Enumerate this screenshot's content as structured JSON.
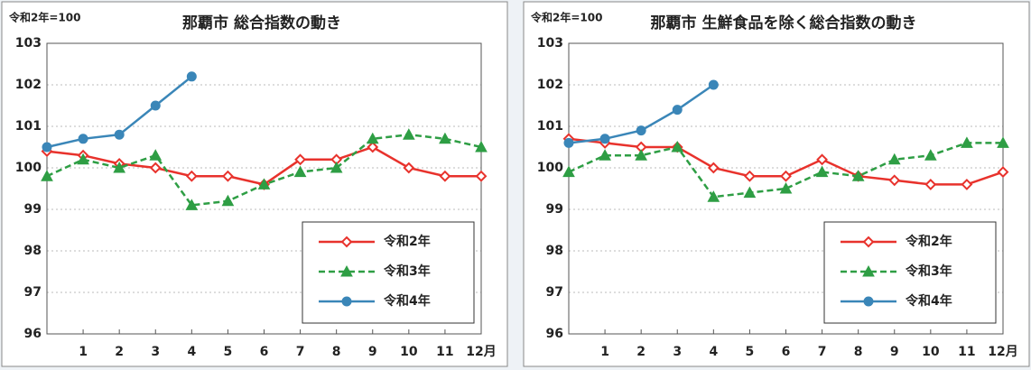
{
  "chart_data": [
    {
      "type": "line",
      "unit_label": "令和2年=100",
      "title": "那覇市 総合指数の動き",
      "x": [
        0,
        1,
        2,
        3,
        4,
        5,
        6,
        7,
        8,
        9,
        10,
        11,
        12
      ],
      "xlim": [
        0,
        12
      ],
      "xticks": [
        1,
        2,
        3,
        4,
        5,
        6,
        7,
        8,
        9,
        10,
        11,
        {
          "value": 12,
          "label": "12月"
        }
      ],
      "ylim": [
        96,
        103
      ],
      "yticks": [
        96,
        97,
        98,
        99,
        100,
        101,
        102,
        103
      ],
      "grid": true,
      "legend": "lower right",
      "series": [
        {
          "name": "令和2年",
          "color": "#e8322c",
          "marker": "diamond",
          "dash": false,
          "values": [
            100.4,
            100.3,
            100.1,
            100.0,
            99.8,
            99.8,
            99.6,
            100.2,
            100.2,
            100.5,
            100.0,
            99.8,
            99.8
          ]
        },
        {
          "name": "令和3年",
          "color": "#2e9e44",
          "marker": "triangle",
          "dash": true,
          "values": [
            99.8,
            100.2,
            100.0,
            100.3,
            99.1,
            99.2,
            99.6,
            99.9,
            100.0,
            100.7,
            100.8,
            100.7,
            100.5
          ]
        },
        {
          "name": "令和4年",
          "color": "#3a86b8",
          "marker": "circle",
          "dash": false,
          "values": [
            100.5,
            100.7,
            100.8,
            101.5,
            102.2,
            null,
            null,
            null,
            null,
            null,
            null,
            null,
            null
          ]
        }
      ]
    },
    {
      "type": "line",
      "unit_label": "令和2年=100",
      "title": "那覇市 生鮮食品を除く総合指数の動き",
      "x": [
        0,
        1,
        2,
        3,
        4,
        5,
        6,
        7,
        8,
        9,
        10,
        11,
        12
      ],
      "xlim": [
        0,
        12
      ],
      "xticks": [
        1,
        2,
        3,
        4,
        5,
        6,
        7,
        8,
        9,
        10,
        11,
        {
          "value": 12,
          "label": "12月"
        }
      ],
      "ylim": [
        96,
        103
      ],
      "yticks": [
        96,
        97,
        98,
        99,
        100,
        101,
        102,
        103
      ],
      "grid": true,
      "legend": "lower right",
      "series": [
        {
          "name": "令和2年",
          "color": "#e8322c",
          "marker": "diamond",
          "dash": false,
          "values": [
            100.7,
            100.6,
            100.5,
            100.5,
            100.0,
            99.8,
            99.8,
            100.2,
            99.8,
            99.7,
            99.6,
            99.6,
            99.9
          ]
        },
        {
          "name": "令和3年",
          "color": "#2e9e44",
          "marker": "triangle",
          "dash": true,
          "values": [
            99.9,
            100.3,
            100.3,
            100.5,
            99.3,
            99.4,
            99.5,
            99.9,
            99.8,
            100.2,
            100.3,
            100.6,
            100.6
          ]
        },
        {
          "name": "令和4年",
          "color": "#3a86b8",
          "marker": "circle",
          "dash": false,
          "values": [
            100.6,
            100.7,
            100.9,
            101.4,
            102.0,
            null,
            null,
            null,
            null,
            null,
            null,
            null,
            null
          ]
        }
      ]
    }
  ]
}
